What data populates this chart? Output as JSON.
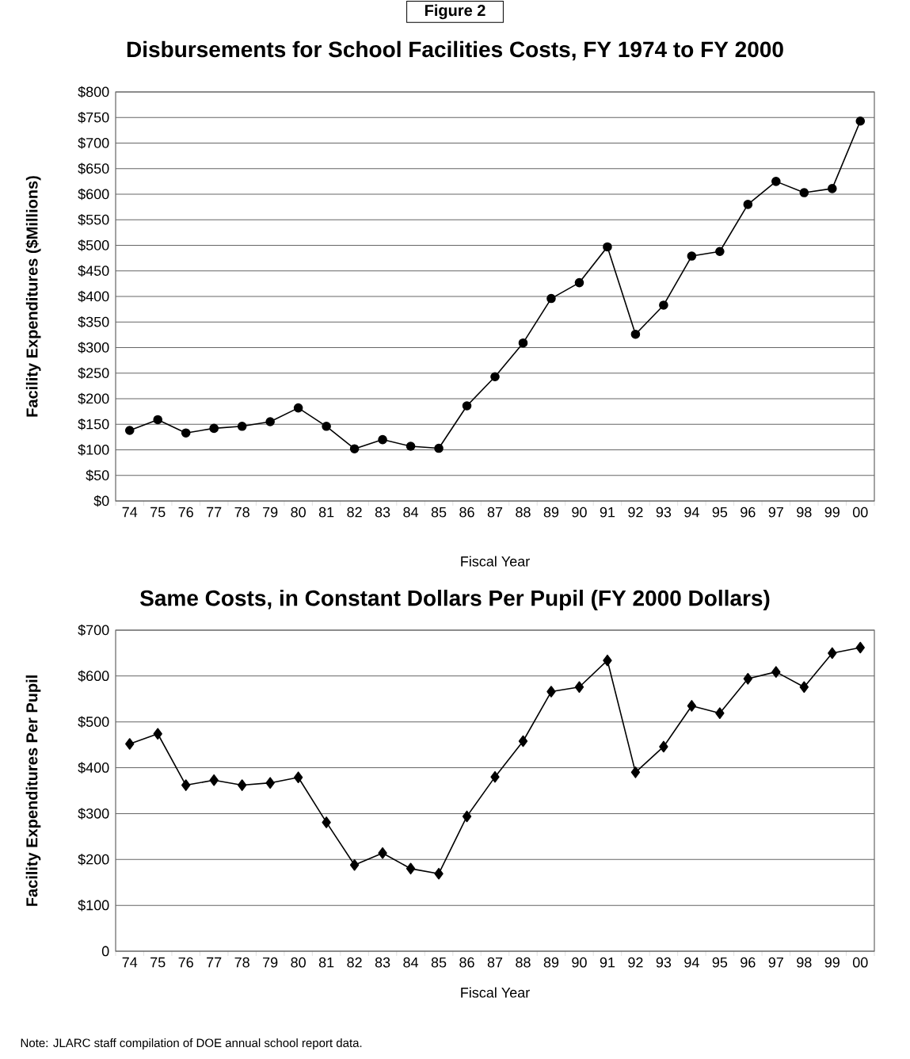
{
  "chart_data": [
    {
      "type": "line",
      "title": "Disbursements for School Facilities Costs, FY 1974 to FY 2000",
      "xlabel": "Fiscal Year",
      "ylabel": "Facility Expenditures ($Millions)",
      "annotations": [
        "Figure 2"
      ],
      "categories": [
        "74",
        "75",
        "76",
        "77",
        "78",
        "79",
        "80",
        "81",
        "82",
        "83",
        "84",
        "85",
        "86",
        "87",
        "88",
        "89",
        "90",
        "91",
        "92",
        "93",
        "94",
        "95",
        "96",
        "97",
        "98",
        "99",
        "00"
      ],
      "values": [
        138,
        159,
        133,
        142,
        146,
        155,
        182,
        146,
        102,
        120,
        107,
        103,
        186,
        243,
        309,
        396,
        427,
        497,
        326,
        383,
        479,
        488,
        580,
        625,
        603,
        611,
        743
      ],
      "color": "#000000",
      "marker": "circle",
      "grid": "y",
      "ylim": [
        0,
        800
      ],
      "yticks": [
        {
          "value": 0,
          "label": "$0"
        },
        {
          "value": 50,
          "label": "$50"
        },
        {
          "value": 100,
          "label": "$100"
        },
        {
          "value": 150,
          "label": "$150"
        },
        {
          "value": 200,
          "label": "$200"
        },
        {
          "value": 250,
          "label": "$250"
        },
        {
          "value": 300,
          "label": "$300"
        },
        {
          "value": 350,
          "label": "$350"
        },
        {
          "value": 400,
          "label": "$400"
        },
        {
          "value": 450,
          "label": "$450"
        },
        {
          "value": 500,
          "label": "$500"
        },
        {
          "value": 550,
          "label": "$550"
        },
        {
          "value": 600,
          "label": "$600"
        },
        {
          "value": 650,
          "label": "$650"
        },
        {
          "value": 700,
          "label": "$700"
        },
        {
          "value": 750,
          "label": "$750"
        },
        {
          "value": 800,
          "label": "$800"
        }
      ]
    },
    {
      "type": "line",
      "title": "Same Costs, in Constant Dollars Per Pupil (FY 2000 Dollars)",
      "xlabel": "Fiscal Year",
      "ylabel": "Facility Expenditures Per Pupil",
      "annotations": [
        "Note:  JLARC staff compilation of DOE annual school report data."
      ],
      "categories": [
        "74",
        "75",
        "76",
        "77",
        "78",
        "79",
        "80",
        "81",
        "82",
        "83",
        "84",
        "85",
        "86",
        "87",
        "88",
        "89",
        "90",
        "91",
        "92",
        "93",
        "94",
        "95",
        "96",
        "97",
        "98",
        "99",
        "00"
      ],
      "values": [
        452,
        474,
        362,
        373,
        362,
        367,
        379,
        281,
        188,
        214,
        180,
        169,
        294,
        380,
        458,
        566,
        576,
        634,
        390,
        446,
        535,
        519,
        594,
        609,
        576,
        650,
        662
      ],
      "color": "#000000",
      "marker": "diamond",
      "grid": "y",
      "ylim": [
        0,
        700
      ],
      "yticks": [
        0,
        {
          "value": 100,
          "label": "$100"
        },
        {
          "value": 200,
          "label": "$200"
        },
        {
          "value": 300,
          "label": "$300"
        },
        {
          "value": 400,
          "label": "$400"
        },
        {
          "value": 500,
          "label": "$500"
        },
        {
          "value": 600,
          "label": "$600"
        },
        {
          "value": 700,
          "label": "$700"
        }
      ]
    }
  ]
}
